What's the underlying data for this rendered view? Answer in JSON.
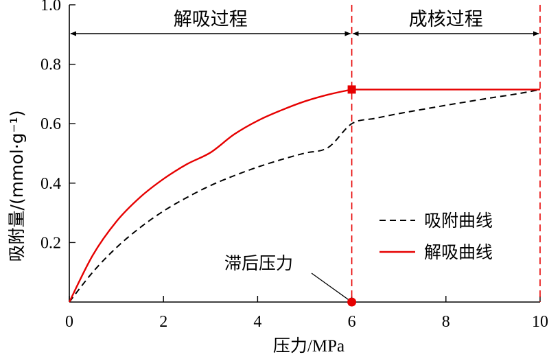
{
  "chart_data": {
    "type": "line",
    "xlabel": "压力/MPa",
    "ylabel": "吸附量/(mmol·g⁻¹)",
    "xlim": [
      0,
      10
    ],
    "ylim": [
      0,
      1.0
    ],
    "xticks": [
      "0",
      "2",
      "4",
      "6",
      "8",
      "10"
    ],
    "yticks": [
      "0.2",
      "0.4",
      "0.6",
      "0.8",
      "1.0"
    ],
    "series": [
      {
        "name": "吸附曲线",
        "style": "dashed",
        "color": "#000000",
        "x": [
          0,
          0.5,
          1,
          1.5,
          2,
          2.5,
          3,
          3.5,
          4,
          4.5,
          5,
          5.5,
          6,
          6.5,
          7,
          7.5,
          8,
          8.5,
          9,
          9.5,
          10
        ],
        "y": [
          0,
          0.101,
          0.183,
          0.25,
          0.306,
          0.352,
          0.392,
          0.425,
          0.454,
          0.479,
          0.501,
          0.52,
          0.6,
          0.618,
          0.634,
          0.648,
          0.662,
          0.675,
          0.688,
          0.7,
          0.715
        ]
      },
      {
        "name": "解吸曲线",
        "style": "solid",
        "color": "#e60000",
        "x": [
          0,
          0.5,
          1,
          1.5,
          2,
          2.5,
          3,
          3.5,
          4,
          4.5,
          5,
          5.5,
          6,
          6.5,
          7,
          7.5,
          8,
          8.5,
          9,
          9.5,
          10
        ],
        "y": [
          0,
          0.158,
          0.271,
          0.352,
          0.414,
          0.464,
          0.503,
          0.564,
          0.61,
          0.645,
          0.675,
          0.698,
          0.715,
          0.715,
          0.715,
          0.715,
          0.715,
          0.715,
          0.715,
          0.715,
          0.715
        ]
      }
    ],
    "markers": [
      {
        "type": "square",
        "x": 6,
        "y": 0.715,
        "color": "#e60000"
      },
      {
        "type": "circle",
        "x": 6,
        "y": 0,
        "color": "#e60000"
      }
    ],
    "vlines": [
      {
        "x": 6,
        "style": "dashed",
        "color": "#e60000"
      },
      {
        "x": 10,
        "style": "dashed",
        "color": "#e60000"
      }
    ],
    "regions": [
      {
        "label": "解吸过程",
        "x_start": 0,
        "x_end": 6
      },
      {
        "label": "成核过程",
        "x_start": 6,
        "x_end": 10
      }
    ],
    "annotation": {
      "text": "滞后压力",
      "x": 6,
      "y": 0
    },
    "legend_position": "bottom-right",
    "grid": false
  }
}
